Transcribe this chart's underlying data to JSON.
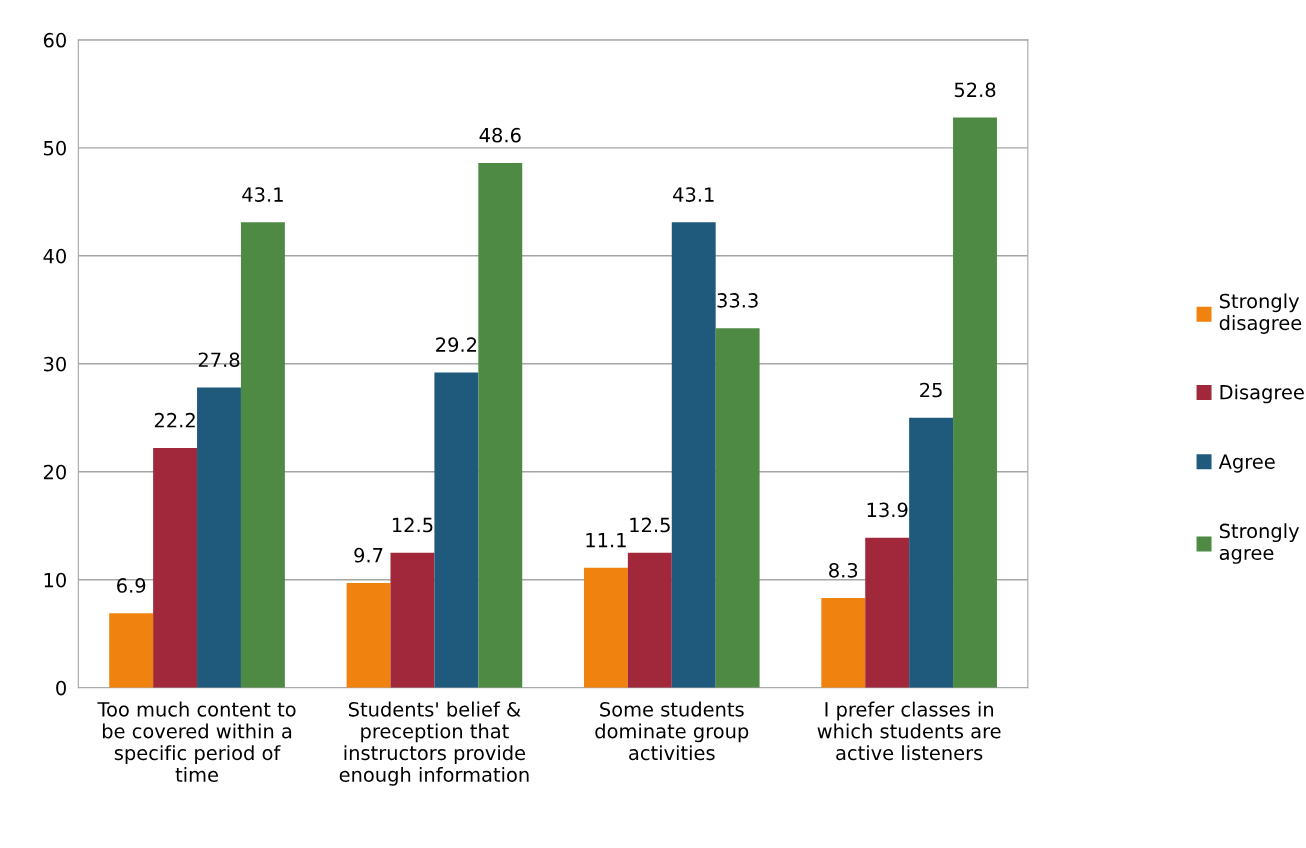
{
  "chart_data": {
    "type": "bar",
    "categories": [
      "Too much content to\nbe covered within a\nspecific period of\ntime",
      "Students' belief &\npreception that\ninstructors provide\nenough information",
      "Some students\ndominate group\nactivities",
      "I prefer classes in\nwhich students are\nactive listeners"
    ],
    "series": [
      {
        "name": "Strongly\ndisagree",
        "color": "#f0820f",
        "values": [
          6.9,
          9.7,
          11.1,
          8.3
        ]
      },
      {
        "name": "Disagree",
        "color": "#a0283a",
        "values": [
          22.2,
          12.5,
          12.5,
          13.9
        ]
      },
      {
        "name": "Agree",
        "color": "#1f5a7d",
        "values": [
          27.8,
          29.2,
          43.1,
          25
        ]
      },
      {
        "name": "Strongly\nagree",
        "color": "#4e8a44",
        "values": [
          43.1,
          48.6,
          33.3,
          52.8
        ]
      }
    ],
    "ylim": [
      0,
      60
    ],
    "yticks": [
      0,
      10,
      20,
      30,
      40,
      50,
      60
    ],
    "grid": "y",
    "legend": "right",
    "data_labels": true
  }
}
